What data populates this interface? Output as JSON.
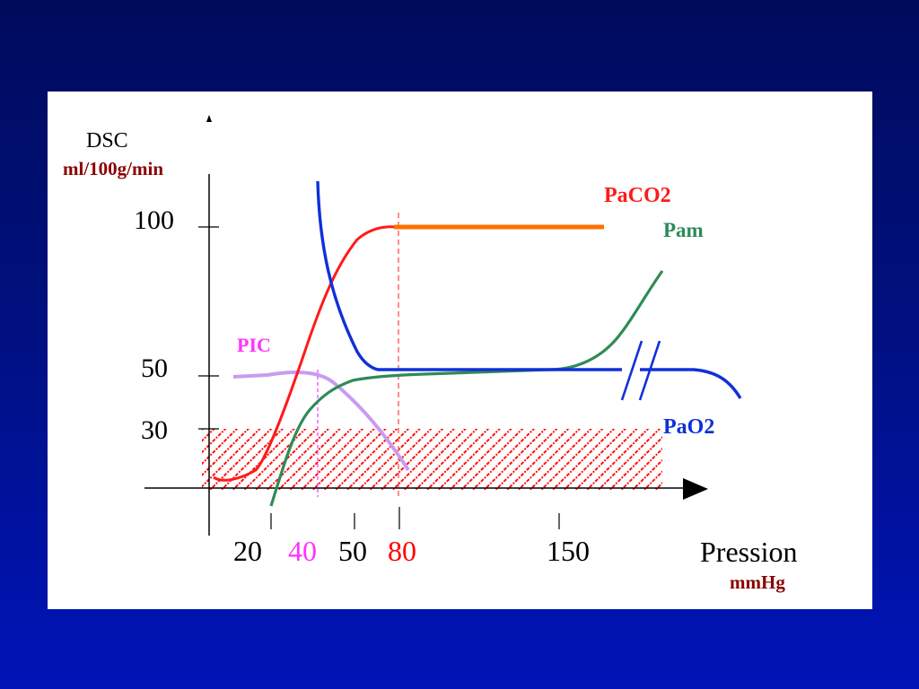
{
  "chart_data": {
    "type": "line",
    "ylabel": "DSC",
    "ylabel_unit": "ml/100g/min",
    "xlabel": "Pression",
    "xlabel_unit": "mmHg",
    "y_ticks": [
      "100",
      "50",
      "30"
    ],
    "x_ticks": [
      {
        "label": "20",
        "color": "#000000"
      },
      {
        "label": "40",
        "color": "#ff33ff"
      },
      {
        "label": "50",
        "color": "#000000"
      },
      {
        "label": "80",
        "color": "#ff0000"
      },
      {
        "label": "150",
        "color": "#000000"
      }
    ],
    "series": [
      {
        "name": "PaCO2",
        "color": "#ff0000",
        "accent": "#ff7000"
      },
      {
        "name": "Pam",
        "color": "#2e8b57"
      },
      {
        "name": "PIC",
        "color": "#ff33ff",
        "line_color": "#c89cf0"
      },
      {
        "name": "PaO2",
        "color": "#1030d8"
      }
    ],
    "ischemia_zone": {
      "y_min": 0,
      "y_max": 30,
      "color": "#ff0000",
      "pattern": "hatched"
    },
    "grid": false
  },
  "colors": {
    "unit": "#8b0000",
    "axis": "#000000",
    "background": "#0014b8"
  }
}
